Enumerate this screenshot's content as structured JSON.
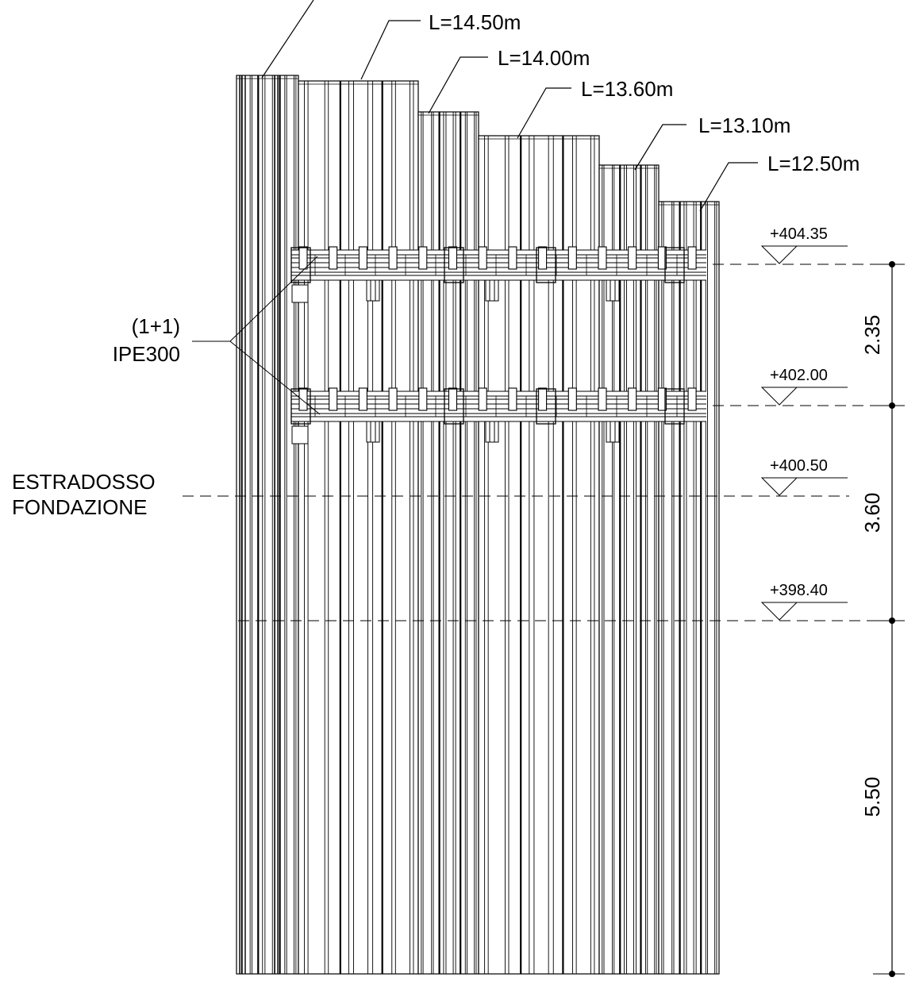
{
  "sheet_piles": {
    "lengths": [
      {
        "label": "L=14.50m"
      },
      {
        "label": "L=14.00m"
      },
      {
        "label": "L=13.60m"
      },
      {
        "label": "L=13.10m"
      },
      {
        "label": "L=12.50m"
      }
    ]
  },
  "walers": {
    "label_line1": "(1+1)",
    "label_line2": "IPE300"
  },
  "foundation": {
    "label_line1": "ESTRADOSSO",
    "label_line2": "FONDAZIONE"
  },
  "levels": [
    {
      "label": "+404.35"
    },
    {
      "label": "+402.00"
    },
    {
      "label": "+400.50"
    },
    {
      "label": "+398.40"
    }
  ],
  "dimensions": [
    {
      "label": "2.35"
    },
    {
      "label": "3.60"
    },
    {
      "label": "5.50"
    }
  ]
}
